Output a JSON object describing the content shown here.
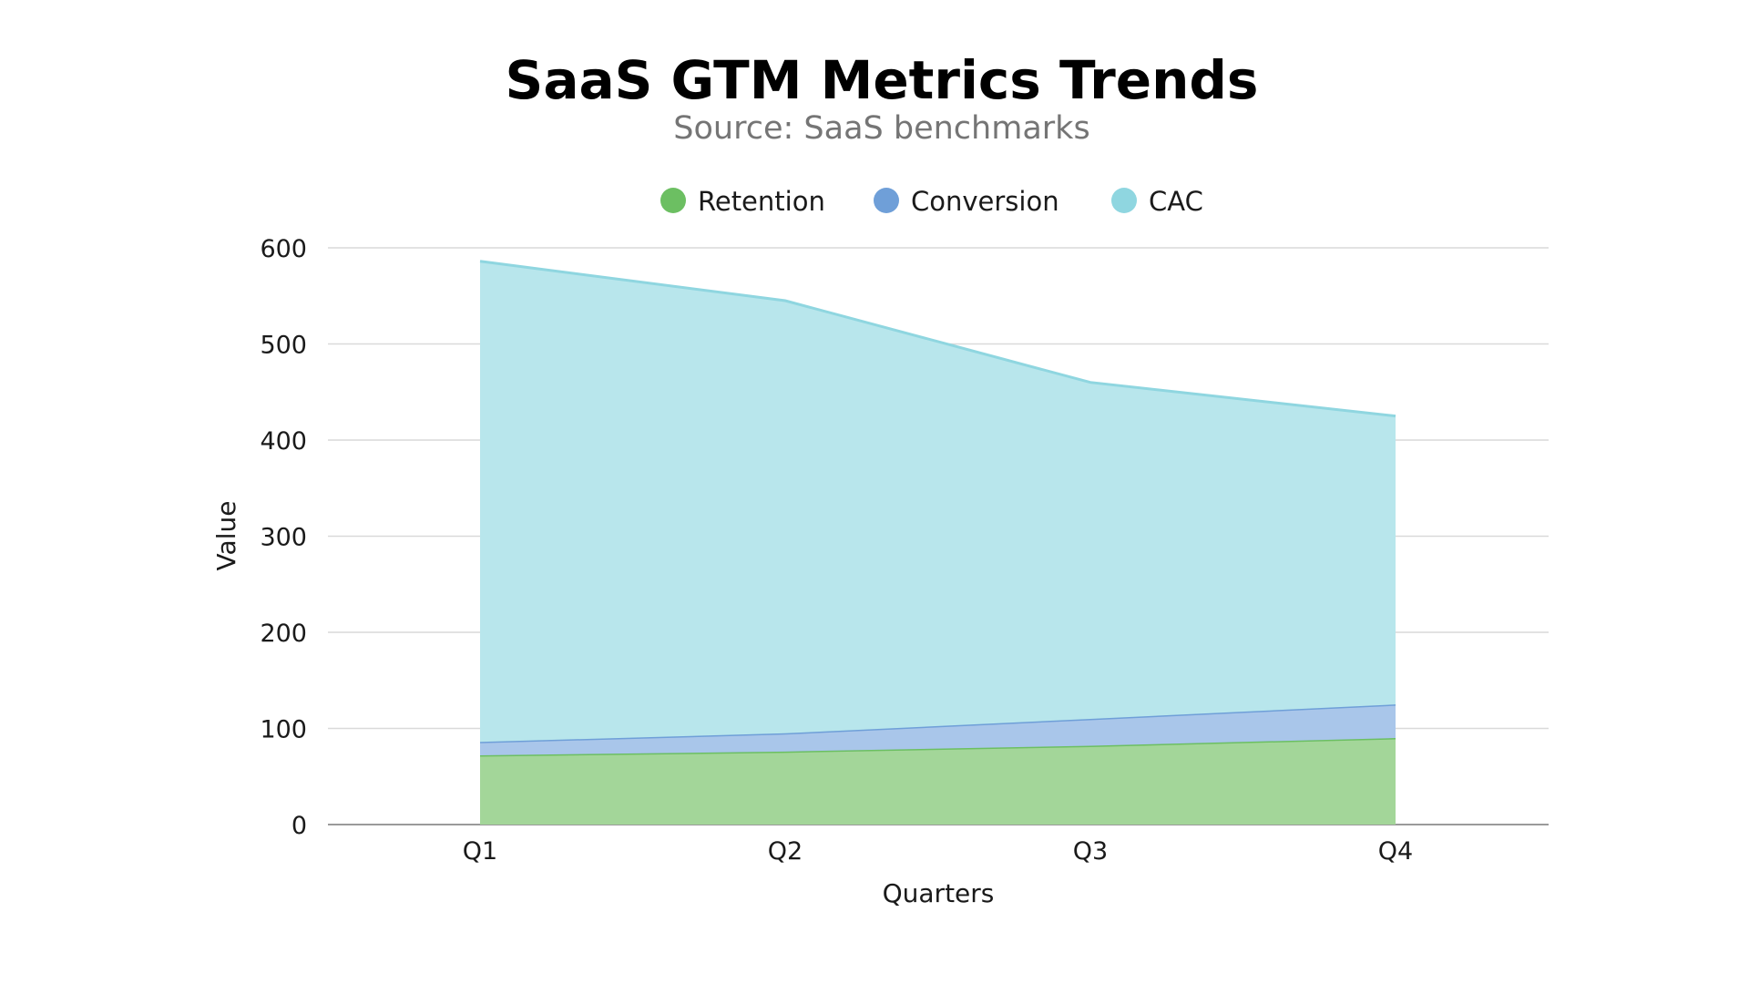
{
  "chart_data": {
    "type": "area",
    "stacked": true,
    "title": "SaaS GTM Metrics Trends",
    "subtitle": "Source: SaaS benchmarks",
    "xlabel": "Quarters",
    "ylabel": "Value",
    "categories": [
      "Q1",
      "Q2",
      "Q3",
      "Q4"
    ],
    "ylim": [
      0,
      600
    ],
    "yticks": [
      0,
      100,
      200,
      300,
      400,
      500,
      600
    ],
    "grid": true,
    "legend_position": "top-center",
    "series": [
      {
        "name": "Retention",
        "values": [
          72,
          76,
          82,
          90
        ],
        "color": "#6cbf62",
        "fill": "#a3d699"
      },
      {
        "name": "Conversion",
        "values": [
          14,
          19,
          28,
          35
        ],
        "color": "#6f9fd8",
        "fill": "#a9c6ea"
      },
      {
        "name": "CAC",
        "values": [
          500,
          450,
          350,
          300
        ],
        "color": "#8fd6e0",
        "fill": "#b8e6ec"
      }
    ]
  }
}
